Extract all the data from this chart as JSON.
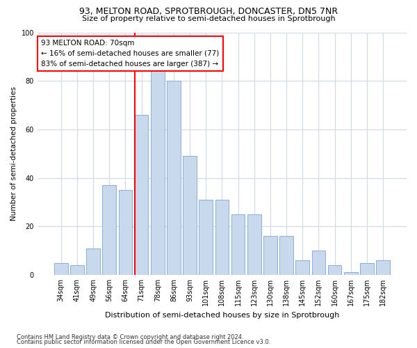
{
  "title1": "93, MELTON ROAD, SPROTBROUGH, DONCASTER, DN5 7NR",
  "title2": "Size of property relative to semi-detached houses in Sprotbrough",
  "xlabel": "Distribution of semi-detached houses by size in Sprotbrough",
  "ylabel": "Number of semi-detached properties",
  "categories": [
    "34sqm",
    "41sqm",
    "49sqm",
    "56sqm",
    "64sqm",
    "71sqm",
    "78sqm",
    "86sqm",
    "93sqm",
    "101sqm",
    "108sqm",
    "115sqm",
    "123sqm",
    "130sqm",
    "138sqm",
    "145sqm",
    "152sqm",
    "160sqm",
    "167sqm",
    "175sqm",
    "182sqm"
  ],
  "values": [
    5,
    4,
    11,
    37,
    35,
    66,
    84,
    80,
    49,
    31,
    31,
    25,
    25,
    16,
    16,
    6,
    10,
    4,
    1,
    5,
    6
  ],
  "bar_color": "#c9d9ed",
  "bar_edge_color": "#8aafd4",
  "annotation_text": "93 MELTON ROAD: 70sqm\n← 16% of semi-detached houses are smaller (77)\n83% of semi-detached houses are larger (387) →",
  "annotation_box_color": "white",
  "annotation_box_edge_color": "red",
  "vline_color": "red",
  "ylim": [
    0,
    100
  ],
  "yticks": [
    0,
    20,
    40,
    60,
    80,
    100
  ],
  "footer1": "Contains HM Land Registry data © Crown copyright and database right 2024.",
  "footer2": "Contains public sector information licensed under the Open Government Licence v3.0.",
  "bg_color": "#ffffff",
  "plot_bg_color": "#ffffff",
  "grid_color": "#d0d8e8"
}
